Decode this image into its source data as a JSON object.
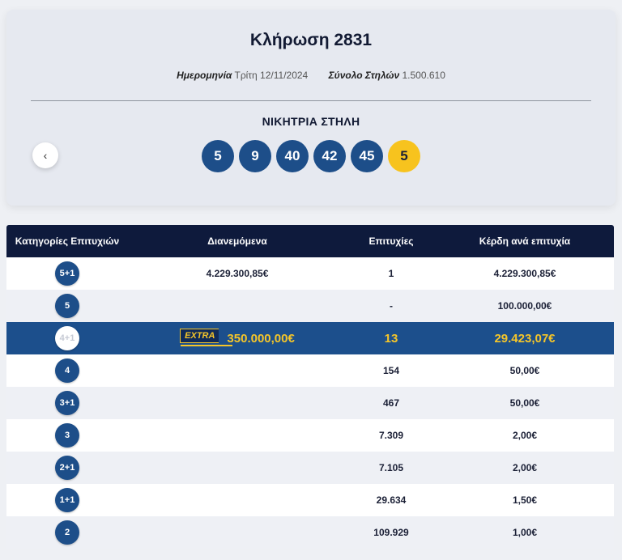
{
  "draw": {
    "title": "Κλήρωση 2831",
    "date_label": "Ημερομηνία",
    "date_value": "Τρίτη 12/11/2024",
    "columns_label": "Σύνολο Στηλών",
    "columns_value": "1.500.610",
    "winning_label": "ΝΙΚΗΤΡΙΑ ΣΤΗΛΗ",
    "prev_icon": "‹",
    "numbers": [
      "5",
      "9",
      "40",
      "42",
      "45"
    ],
    "joker": "5"
  },
  "table": {
    "headers": [
      "Κατηγορίες Επιτυχιών",
      "Διανεμόμενα",
      "Επιτυχίες",
      "Κέρδη ανά επιτυχία"
    ],
    "rows": [
      {
        "cat": "5+1",
        "distributed": "4.229.300,85€",
        "winners": "1",
        "prize": "4.229.300,85€"
      },
      {
        "cat": "5",
        "distributed": "",
        "winners": "-",
        "prize": "100.000,00€"
      },
      {
        "cat": "4+1",
        "extra": "EXTRA",
        "distributed": "350.000,00€",
        "winners": "13",
        "prize": "29.423,07€"
      },
      {
        "cat": "4",
        "distributed": "",
        "winners": "154",
        "prize": "50,00€"
      },
      {
        "cat": "3+1",
        "distributed": "",
        "winners": "467",
        "prize": "50,00€"
      },
      {
        "cat": "3",
        "distributed": "",
        "winners": "7.309",
        "prize": "2,00€"
      },
      {
        "cat": "2+1",
        "distributed": "",
        "winners": "7.105",
        "prize": "2,00€"
      },
      {
        "cat": "1+1",
        "distributed": "",
        "winners": "29.634",
        "prize": "1,50€"
      },
      {
        "cat": "2",
        "distributed": "",
        "winners": "109.929",
        "prize": "1,00€"
      }
    ]
  },
  "colors": {
    "ball": "#1d4e89",
    "joker": "#f7c31e",
    "header": "#0e1a3c",
    "highlight": "#1c4f8c"
  }
}
